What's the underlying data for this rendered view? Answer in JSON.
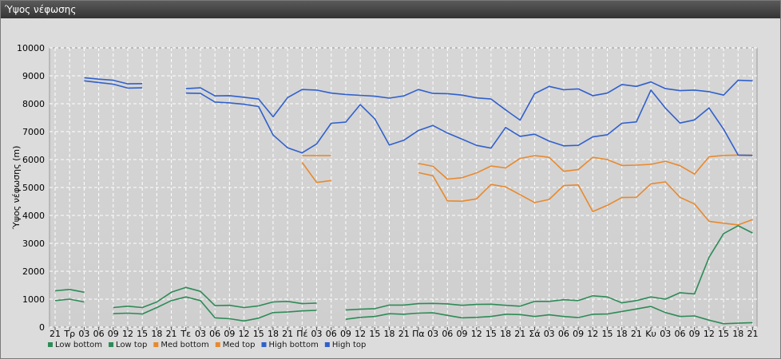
{
  "window": {
    "title": "Ύψος νέφωσης"
  },
  "chart_data": {
    "type": "line",
    "title": "",
    "ylabel": "Ύψος νέφωσης (m)",
    "ylim": [
      0,
      10000
    ],
    "yticks": [
      0,
      1000,
      2000,
      3000,
      4000,
      5000,
      6000,
      7000,
      8000,
      9000,
      10000
    ],
    "categories": [
      "21",
      "Τρ",
      "03",
      "06",
      "09",
      "12",
      "15",
      "18",
      "21",
      "Τε",
      "03",
      "06",
      "09",
      "12",
      "15",
      "18",
      "21",
      "Πέ",
      "03",
      "06",
      "09",
      "12",
      "15",
      "18",
      "21",
      "Πα",
      "03",
      "06",
      "09",
      "12",
      "15",
      "18",
      "21",
      "Σά",
      "03",
      "06",
      "09",
      "12",
      "15",
      "18",
      "21",
      "Κυ",
      "03",
      "06",
      "09",
      "12",
      "15",
      "18",
      "21"
    ],
    "legend_position": "bottom-left",
    "grid": true,
    "series": [
      {
        "name": "Low bottom",
        "color": "#2e8b57",
        "values": [
          950,
          1000,
          900,
          null,
          480,
          500,
          470,
          700,
          950,
          1080,
          950,
          330,
          300,
          220,
          320,
          520,
          540,
          580,
          600,
          null,
          280,
          350,
          380,
          480,
          460,
          500,
          510,
          420,
          330,
          350,
          380,
          460,
          450,
          380,
          440,
          380,
          340,
          460,
          470,
          560,
          650,
          740,
          520,
          380,
          400,
          250,
          120,
          140,
          160
        ]
      },
      {
        "name": "Low top",
        "color": "#2e8b57",
        "values": [
          1300,
          1350,
          1250,
          null,
          700,
          750,
          700,
          900,
          1250,
          1420,
          1280,
          770,
          780,
          700,
          760,
          900,
          920,
          840,
          860,
          null,
          610,
          640,
          660,
          790,
          790,
          840,
          850,
          830,
          780,
          810,
          820,
          780,
          750,
          920,
          920,
          980,
          950,
          1120,
          1080,
          870,
          950,
          1080,
          1000,
          1230,
          1190,
          2500,
          3350,
          3630,
          3370
        ]
      },
      {
        "name": "Med bottom",
        "color": "#e8892e",
        "values": [
          null,
          null,
          null,
          null,
          null,
          null,
          null,
          null,
          null,
          null,
          null,
          null,
          null,
          null,
          null,
          null,
          null,
          5900,
          5180,
          5250,
          null,
          null,
          null,
          null,
          null,
          5530,
          5420,
          4520,
          4510,
          4590,
          5110,
          5020,
          4740,
          4460,
          4570,
          5070,
          5090,
          4140,
          4360,
          4640,
          4650,
          5130,
          5200,
          4650,
          4410,
          3790,
          3720,
          3660,
          3850
        ]
      },
      {
        "name": "Med top",
        "color": "#e8892e",
        "values": [
          null,
          null,
          null,
          null,
          null,
          null,
          null,
          null,
          null,
          null,
          null,
          null,
          null,
          null,
          null,
          null,
          null,
          6140,
          6140,
          6140,
          null,
          null,
          null,
          null,
          null,
          5860,
          5760,
          5300,
          5350,
          5520,
          5770,
          5700,
          6040,
          6140,
          6080,
          5580,
          5640,
          6080,
          6000,
          5790,
          5800,
          5830,
          5940,
          5780,
          5480,
          6100,
          6150,
          6160,
          6160
        ]
      },
      {
        "name": "High bottom",
        "color": "#3060cc",
        "values": [
          null,
          null,
          8820,
          8760,
          8700,
          8560,
          8570,
          null,
          null,
          8380,
          8370,
          8060,
          8030,
          7980,
          7900,
          6880,
          6420,
          6240,
          6560,
          7300,
          7340,
          7970,
          7460,
          6520,
          6690,
          7040,
          7220,
          6950,
          6730,
          6510,
          6410,
          7150,
          6830,
          6910,
          6660,
          6490,
          6510,
          6810,
          6890,
          7300,
          7350,
          8490,
          7840,
          7310,
          7420,
          7850,
          7090,
          6160,
          6150
        ]
      },
      {
        "name": "High top",
        "color": "#3060cc",
        "values": [
          null,
          null,
          8930,
          8880,
          8840,
          8710,
          8720,
          null,
          null,
          8540,
          8570,
          8280,
          8290,
          8230,
          8170,
          7530,
          8220,
          8510,
          8490,
          8380,
          8330,
          8300,
          8270,
          8200,
          8280,
          8510,
          8370,
          8360,
          8310,
          8210,
          8170,
          7780,
          7410,
          8360,
          8620,
          8500,
          8530,
          8290,
          8380,
          8690,
          8620,
          8780,
          8540,
          8470,
          8490,
          8430,
          8310,
          8840,
          8820
        ]
      }
    ]
  }
}
